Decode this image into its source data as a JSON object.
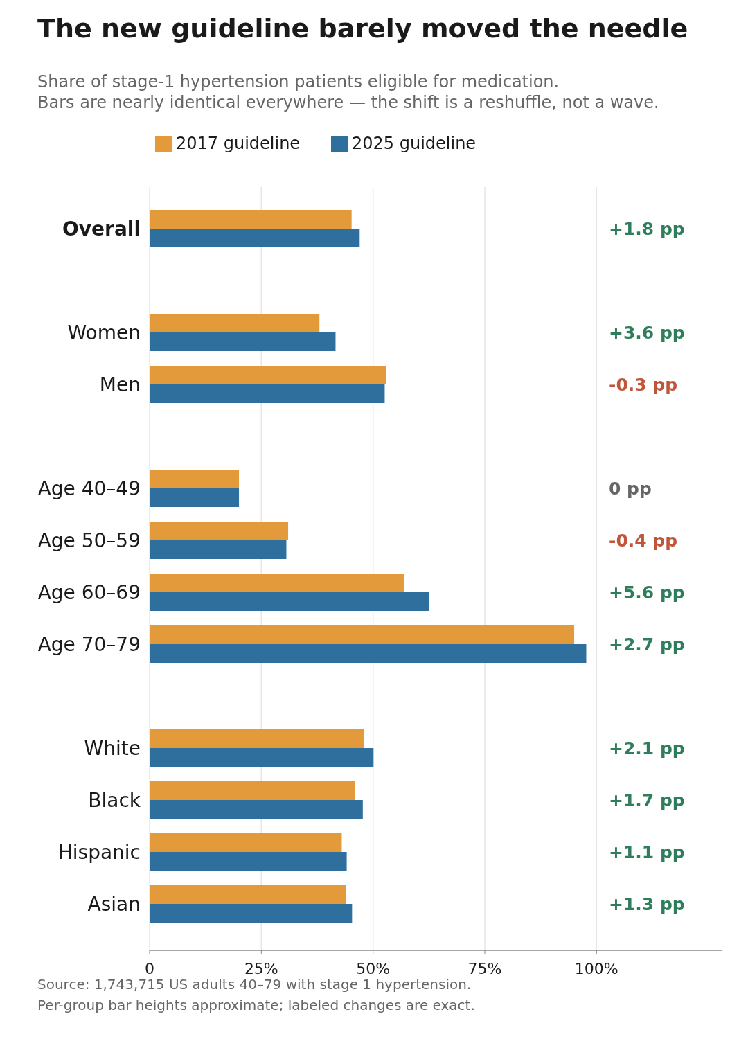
{
  "chart_data": {
    "type": "bar",
    "orientation": "horizontal",
    "title": "The new guideline barely moved the needle",
    "subtitle": "Share of stage-1 hypertension patients eligible for medication.\nBars are nearly identical everywhere — the shift is a reshuffle, not a wave.",
    "categories": [
      "Overall",
      null,
      "Women",
      "Men",
      null,
      "Age 40–49",
      "Age 50–59",
      "Age 60–69",
      "Age 70–79",
      null,
      "White",
      "Black",
      "Hispanic",
      "Asian"
    ],
    "series": [
      {
        "name": "2017 guideline",
        "color": "#e39a3b",
        "values": [
          45.2,
          null,
          38.0,
          52.9,
          null,
          20.0,
          31.0,
          57.0,
          95.0,
          null,
          48.0,
          46.0,
          43.0,
          44.0
        ]
      },
      {
        "name": "2025 guideline",
        "color": "#2e6f9e",
        "values": [
          47.0,
          null,
          41.6,
          52.6,
          null,
          20.0,
          30.6,
          62.6,
          97.7,
          null,
          50.1,
          47.7,
          44.1,
          45.3
        ]
      }
    ],
    "xlim": [
      0,
      128
    ],
    "xticks": [
      {
        "value": 0,
        "label": "0"
      },
      {
        "value": 25,
        "label": "25%"
      },
      {
        "value": 50,
        "label": "50%"
      },
      {
        "value": 75,
        "label": "75%"
      },
      {
        "value": 100,
        "label": "100%"
      }
    ],
    "grid": "x",
    "legend": "top",
    "annotations": [
      "+1.8 pp",
      "+3.6 pp",
      "-0.3 pp",
      "0 pp",
      "-0.4 pp",
      "+5.6 pp",
      "+2.7 pp",
      "+2.1 pp",
      "+1.7 pp",
      "+1.1 pp",
      "+1.3 pp",
      "Source: 1,743,715 US adults 40–79 with stage 1 hypertension.",
      "Per-group bar heights approximate; labeled changes are exact."
    ]
  }
}
